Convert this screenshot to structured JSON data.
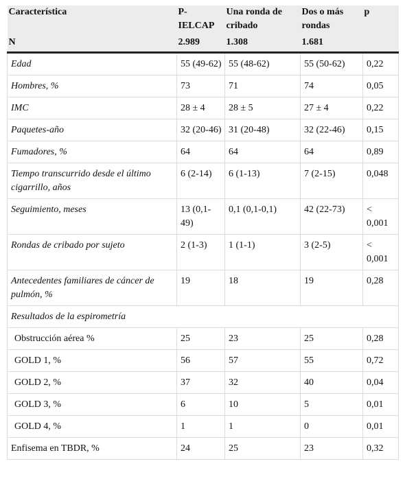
{
  "header": {
    "columns": [
      "Característica",
      "P-IELCAP",
      "Una ronda de cribado",
      "Dos o más rondas",
      "p"
    ],
    "n_label": "N",
    "n_values": [
      "2.989",
      "1.308",
      "1.681"
    ]
  },
  "rows": [
    {
      "label": "Edad",
      "values": [
        "55 (49-62)",
        "55 (48-62)",
        "55 (50-62)",
        "0,22"
      ]
    },
    {
      "label": "Hombres, %",
      "values": [
        "73",
        "71",
        "74",
        "0,05"
      ]
    },
    {
      "label": "IMC",
      "values": [
        "28 ± 4",
        "28 ± 5",
        "27 ± 4",
        "0,22"
      ]
    },
    {
      "label": "Paquetes-año",
      "values": [
        "32 (20-46)",
        "31 (20-48)",
        "32 (22-46)",
        "0,15"
      ]
    },
    {
      "label": "Fumadores, %",
      "values": [
        "64",
        "64",
        "64",
        "0,89"
      ]
    },
    {
      "label": "Tiempo transcurrido desde el último cigarrillo, años",
      "values": [
        "6 (2-14)",
        "6 (1-13)",
        "7 (2-15)",
        "0,048"
      ]
    },
    {
      "label": "Seguimiento, meses",
      "values": [
        "13 (0,1-49)",
        "0,1 (0,1-0,1)",
        "42 (22-73)",
        "< 0,001"
      ]
    },
    {
      "label": "Rondas de cribado por sujeto",
      "values": [
        "2 (1-3)",
        "1 (1-1)",
        "3 (2-5)",
        "< 0,001"
      ]
    },
    {
      "label": "Antecedentes familiares de cáncer de pulmón, %",
      "values": [
        "19",
        "18",
        "19",
        "0,28"
      ]
    }
  ],
  "section": {
    "title": "Resultados de la espirometría",
    "rows": [
      {
        "label": "Obstrucción aérea %",
        "values": [
          "25",
          "23",
          "25",
          "0,28"
        ]
      },
      {
        "label": "GOLD 1, %",
        "values": [
          "56",
          "57",
          "55",
          "0,72"
        ]
      },
      {
        "label": "GOLD 2, %",
        "values": [
          "37",
          "32",
          "40",
          "0,04"
        ]
      },
      {
        "label": "GOLD 3, %",
        "values": [
          "6",
          "10",
          "5",
          "0,01"
        ]
      },
      {
        "label": "GOLD 4, %",
        "values": [
          "1",
          "1",
          "0",
          "0,01"
        ]
      }
    ]
  },
  "footer_rows": [
    {
      "label": "Enfisema en TBDR, %",
      "values": [
        "24",
        "25",
        "23",
        "0,32"
      ]
    }
  ]
}
